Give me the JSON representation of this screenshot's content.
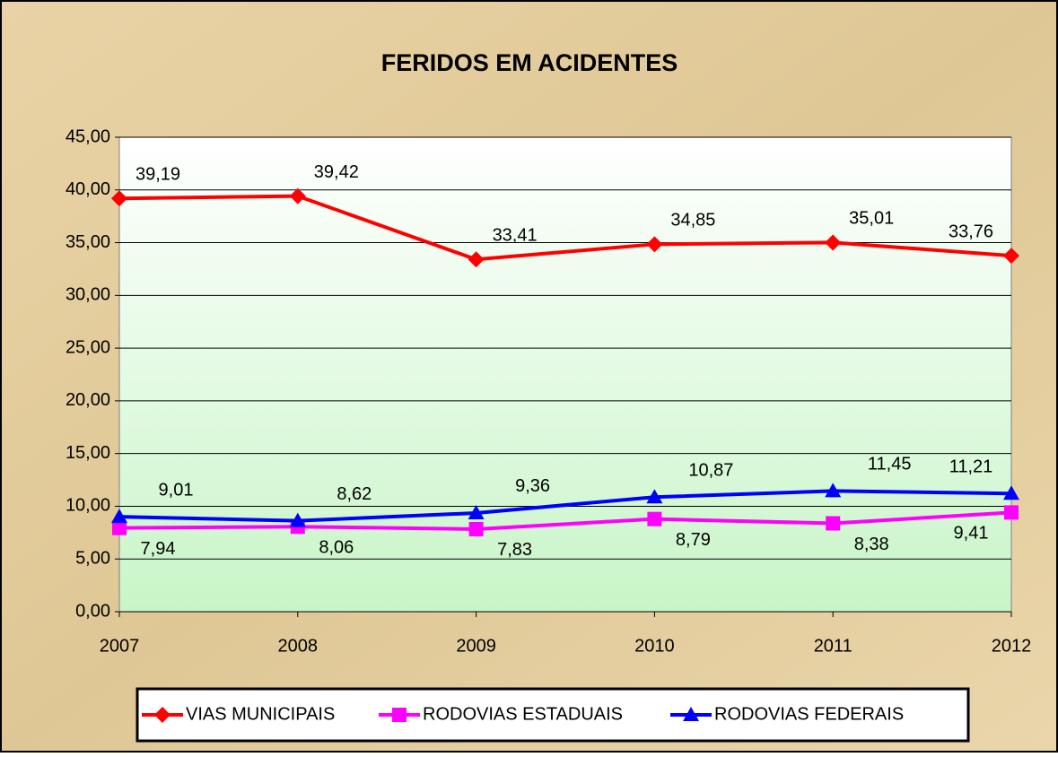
{
  "chart_data": {
    "type": "line",
    "title": "FERIDOS EM ACIDENTES",
    "categories": [
      "2007",
      "2008",
      "2009",
      "2010",
      "2011",
      "2012"
    ],
    "series": [
      {
        "name": "VIAS MUNICIPAIS",
        "color": "#ff0000",
        "marker": "diamond",
        "values": [
          39.19,
          39.42,
          33.41,
          34.85,
          35.01,
          33.76
        ],
        "value_labels": [
          "39,19",
          "39,42",
          "33,41",
          "34,85",
          "35,01",
          "33,76"
        ]
      },
      {
        "name": "RODOVIAS ESTADUAIS",
        "color": "#ff00ff",
        "marker": "square",
        "values": [
          7.94,
          8.06,
          7.83,
          8.79,
          8.38,
          9.41
        ],
        "value_labels": [
          "7,94",
          "8,06",
          "7,83",
          "8,79",
          "8,38",
          "9,41"
        ]
      },
      {
        "name": "RODOVIAS FEDERAIS",
        "color": "#0000ff",
        "marker": "triangle",
        "values": [
          9.01,
          8.62,
          9.36,
          10.87,
          11.45,
          11.21
        ],
        "value_labels": [
          "9,01",
          "8,62",
          "9,36",
          "10,87",
          "11,45",
          "11,21"
        ]
      }
    ],
    "ylim": [
      0,
      45
    ],
    "yticks": [
      {
        "value": 0,
        "label": "0,00"
      },
      {
        "value": 5,
        "label": "5,00"
      },
      {
        "value": 10,
        "label": "10,00"
      },
      {
        "value": 15,
        "label": "15,00"
      },
      {
        "value": 20,
        "label": "20,00"
      },
      {
        "value": 25,
        "label": "25,00"
      },
      {
        "value": 30,
        "label": "30,00"
      },
      {
        "value": 35,
        "label": "35,00"
      },
      {
        "value": 40,
        "label": "40,00"
      },
      {
        "value": 45,
        "label": "45,00"
      }
    ],
    "grid": true,
    "legend": "bottom"
  }
}
